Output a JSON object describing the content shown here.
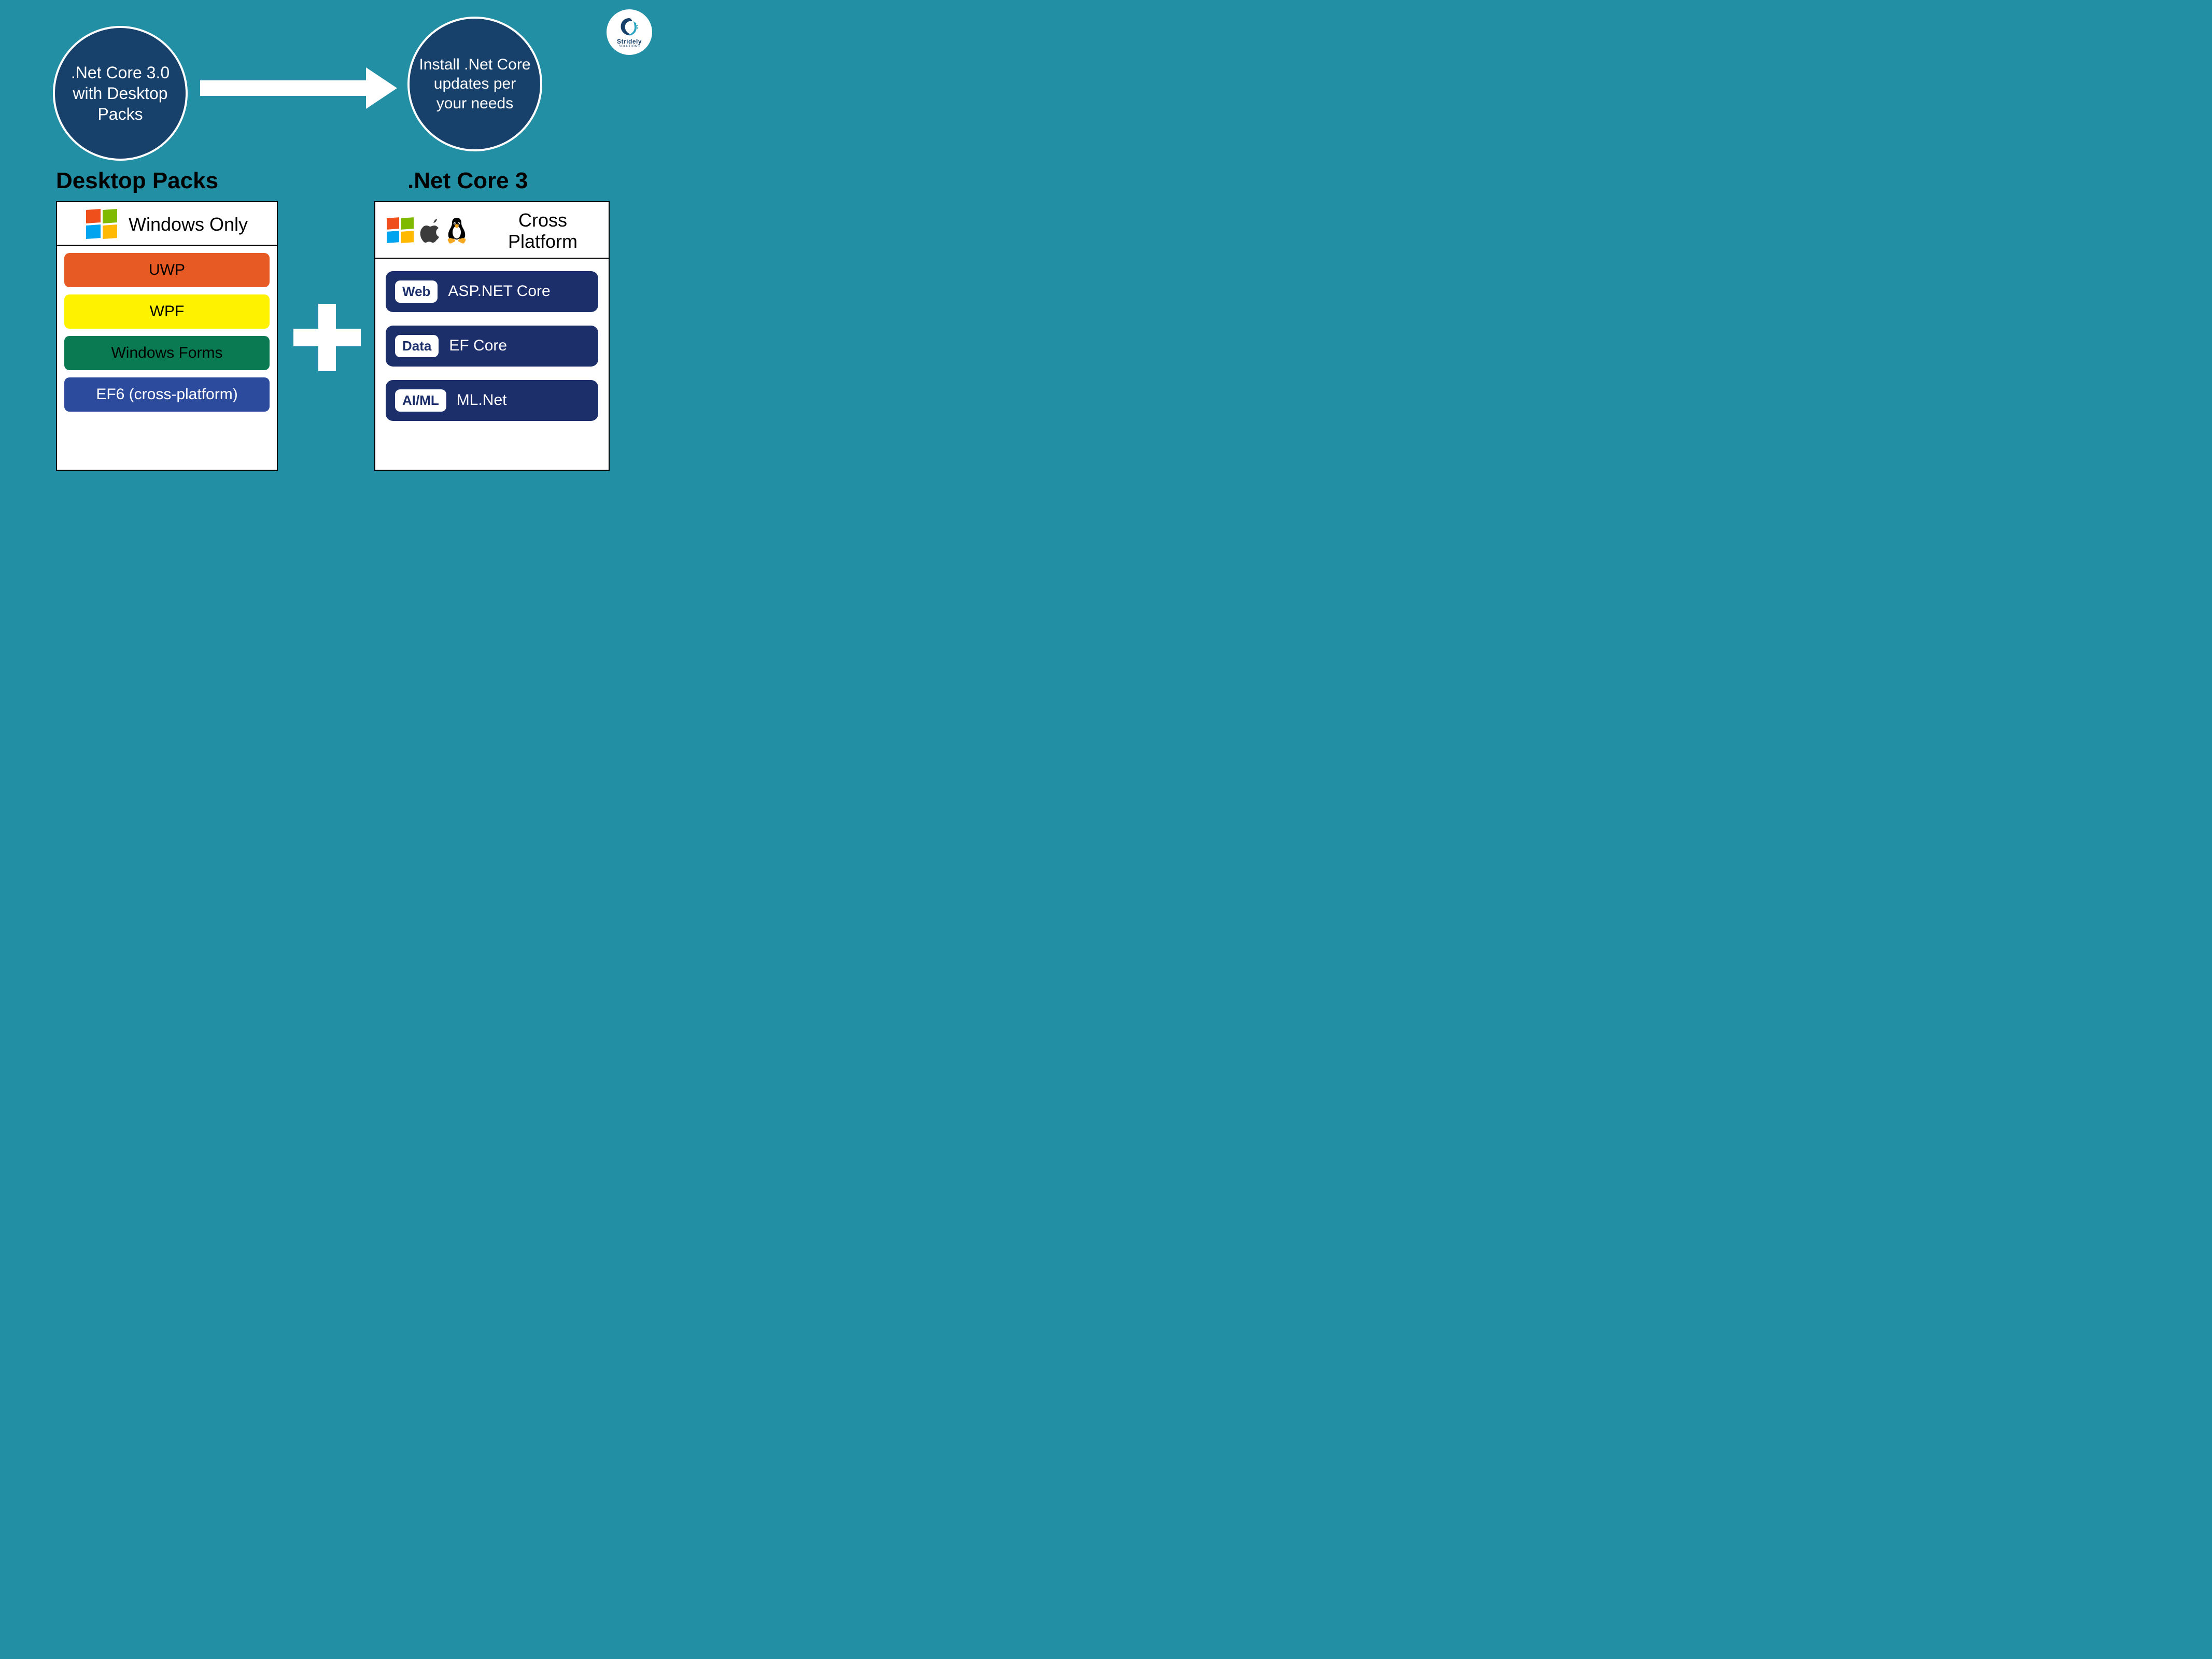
{
  "branding": {
    "name": "Stridely",
    "sub": "SOLUTIONS"
  },
  "colors": {
    "background": "#238fa5",
    "circle_fill": "#17406a",
    "circle_border": "#ffffff",
    "arrow": "#ffffff",
    "panel_border": "#000000",
    "panel_bg": "#ffffff",
    "component_bar_bg": "#1c2f6b",
    "plus": "#ffffff"
  },
  "flow": {
    "left_circle": ".Net Core 3.0 with Desktop Packs",
    "right_circle": "Install .Net Core updates per your needs"
  },
  "sections": {
    "left": {
      "title": "Desktop Packs",
      "header_text": "Windows Only",
      "bars": [
        {
          "label": "UWP",
          "bg": "#e85a24",
          "text_color": "#000000"
        },
        {
          "label": "WPF",
          "bg": "#fff200",
          "text_color": "#000000"
        },
        {
          "label": "Windows Forms",
          "bg": "#0a7a52",
          "text_color": "#000000"
        },
        {
          "label": "EF6 (cross-platform)",
          "bg": "#2c4b9c",
          "text_color": "#ffffff"
        }
      ]
    },
    "right": {
      "title": ".Net Core 3",
      "header_text": "Cross Platform",
      "components": [
        {
          "tag": "Web",
          "label": "ASP.NET Core"
        },
        {
          "tag": "Data",
          "label": "EF Core"
        },
        {
          "tag": "AI/ML",
          "label": "ML.Net"
        }
      ]
    }
  }
}
